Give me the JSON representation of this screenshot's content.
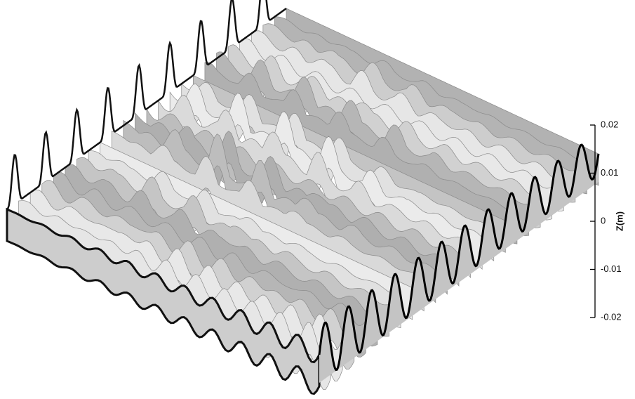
{
  "chart_data": {
    "type": "surface",
    "zlabel": "Z(m)",
    "zlim": [
      -0.02,
      0.02
    ],
    "zticks": [
      0.02,
      0.01,
      0,
      -0.01,
      -0.02
    ]
  }
}
